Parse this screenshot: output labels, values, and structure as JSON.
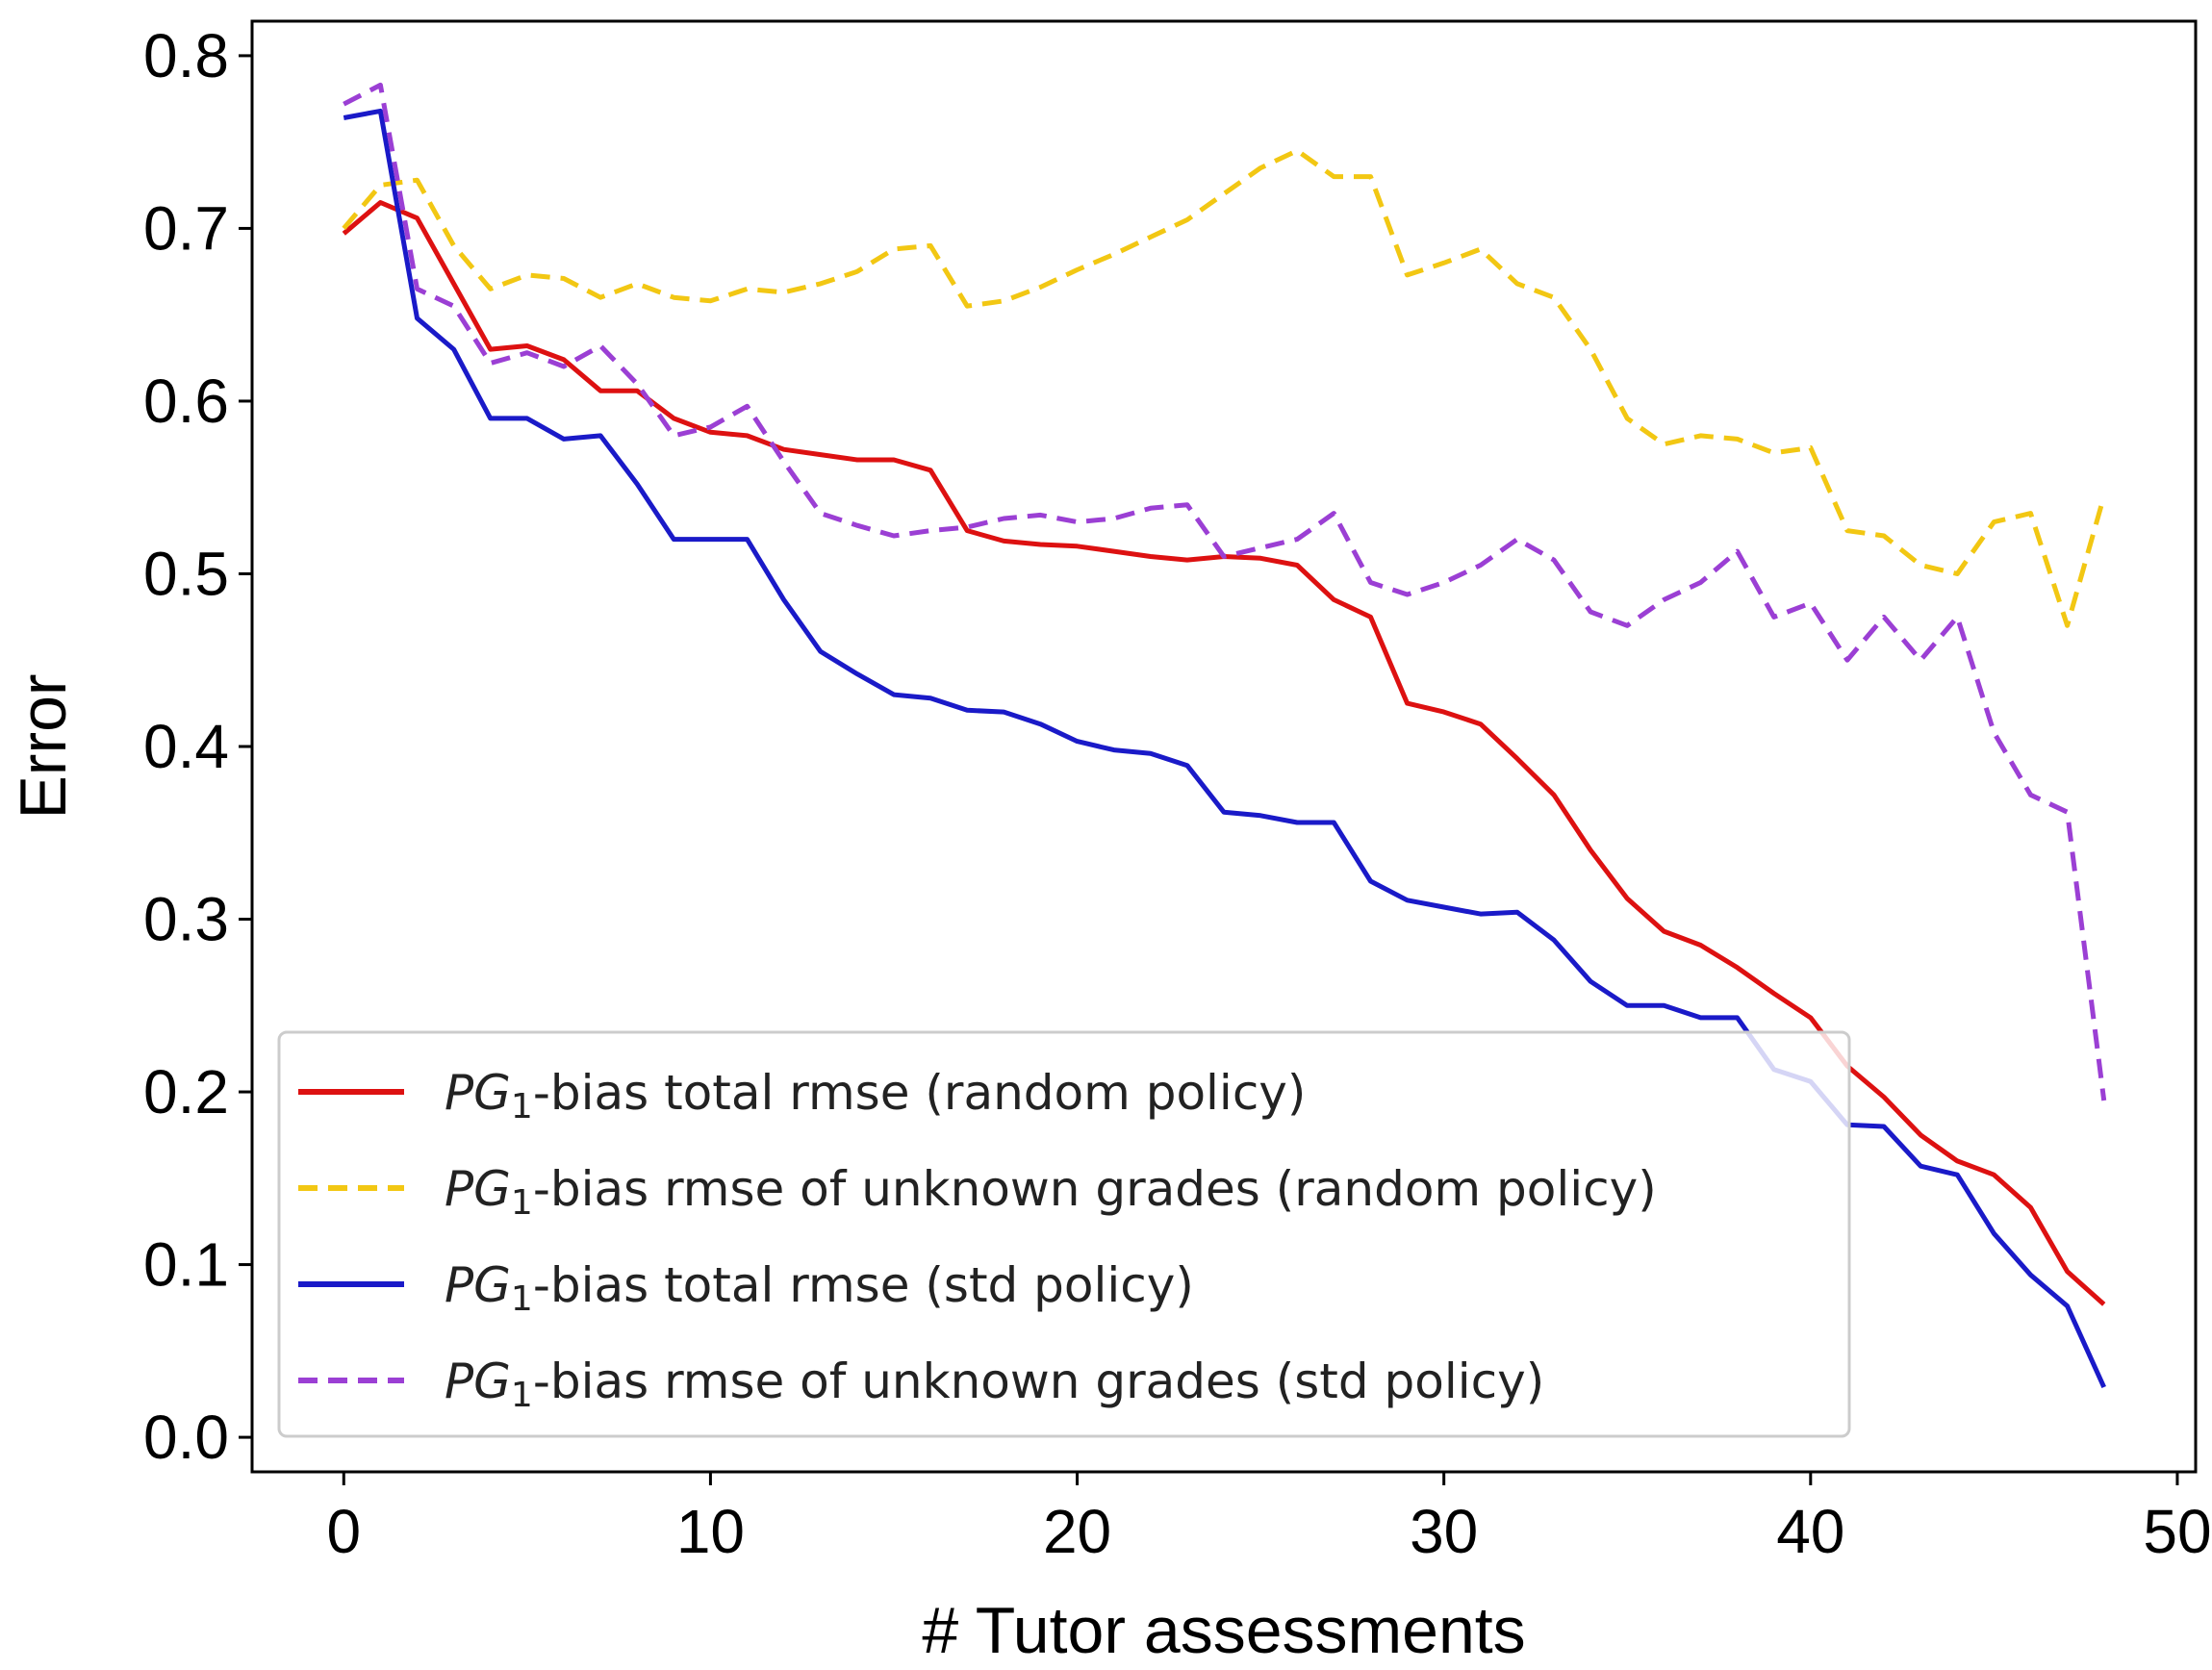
{
  "chart_data": {
    "type": "line",
    "title": "",
    "xlabel": "# Tutor assessments",
    "ylabel": "Error",
    "xlim": [
      -2.5,
      50.5
    ],
    "ylim": [
      -0.02,
      0.82
    ],
    "xticks": [
      0,
      10,
      20,
      30,
      40,
      50
    ],
    "xtick_labels": [
      "0",
      "10",
      "20",
      "30",
      "40",
      "50"
    ],
    "yticks": [
      0.0,
      0.1,
      0.2,
      0.3,
      0.4,
      0.5,
      0.6,
      0.7,
      0.8
    ],
    "ytick_labels": [
      "0.0",
      "0.1",
      "0.2",
      "0.3",
      "0.4",
      "0.5",
      "0.6",
      "0.7",
      "0.8"
    ],
    "legend_position": "lower-left",
    "x": [
      0,
      1,
      2,
      3,
      4,
      5,
      6,
      7,
      8,
      9,
      10,
      11,
      12,
      13,
      14,
      15,
      16,
      17,
      18,
      19,
      20,
      21,
      22,
      23,
      24,
      25,
      26,
      27,
      28,
      29,
      30,
      31,
      32,
      33,
      34,
      35,
      36,
      37,
      38,
      39,
      40,
      41,
      42,
      43,
      44,
      45,
      46,
      47,
      48
    ],
    "series": [
      {
        "name": "PG1-bias total rmse (random policy)",
        "legend_main": "PG",
        "legend_sub": "1",
        "legend_rest": "-bias total rmse (random policy)",
        "color": "#dd1111",
        "style": "solid",
        "values": [
          0.697,
          0.715,
          0.706,
          0.668,
          0.63,
          0.632,
          0.624,
          0.606,
          0.606,
          0.59,
          0.582,
          0.58,
          0.572,
          0.569,
          0.566,
          0.566,
          0.56,
          0.525,
          0.519,
          0.517,
          0.516,
          0.513,
          0.51,
          0.508,
          0.51,
          0.509,
          0.505,
          0.485,
          0.475,
          0.425,
          0.42,
          0.413,
          0.393,
          0.372,
          0.34,
          0.312,
          0.293,
          0.285,
          0.272,
          0.257,
          0.243,
          0.215,
          0.197,
          0.175,
          0.16,
          0.152,
          0.133,
          0.096,
          0.077
        ]
      },
      {
        "name": "PG1-bias rmse of unknown grades (random policy)",
        "legend_main": "PG",
        "legend_sub": "1",
        "legend_rest": "-bias rmse of unknown grades (random policy)",
        "color": "#f2c713",
        "style": "dashed",
        "values": [
          0.7,
          0.725,
          0.728,
          0.69,
          0.665,
          0.673,
          0.671,
          0.66,
          0.668,
          0.66,
          0.658,
          0.665,
          0.663,
          0.668,
          0.675,
          0.688,
          0.69,
          0.655,
          0.658,
          0.666,
          0.676,
          0.685,
          0.695,
          0.705,
          0.72,
          0.735,
          0.745,
          0.73,
          0.73,
          0.673,
          0.68,
          0.688,
          0.668,
          0.66,
          0.63,
          0.59,
          0.575,
          0.58,
          0.578,
          0.57,
          0.573,
          0.525,
          0.522,
          0.505,
          0.5,
          0.53,
          0.535,
          0.47,
          0.545
        ]
      },
      {
        "name": "PG1-bias total rmse (std policy)",
        "legend_main": "PG",
        "legend_sub": "1",
        "legend_rest": "-bias total rmse (std policy)",
        "color": "#1a1ac8",
        "style": "solid",
        "values": [
          0.764,
          0.768,
          0.648,
          0.63,
          0.59,
          0.59,
          0.578,
          0.58,
          0.552,
          0.52,
          0.52,
          0.52,
          0.485,
          0.455,
          0.442,
          0.43,
          0.428,
          0.421,
          0.42,
          0.413,
          0.403,
          0.398,
          0.396,
          0.389,
          0.362,
          0.36,
          0.356,
          0.356,
          0.322,
          0.311,
          0.307,
          0.303,
          0.304,
          0.288,
          0.264,
          0.25,
          0.25,
          0.243,
          0.243,
          0.213,
          0.206,
          0.181,
          0.18,
          0.157,
          0.152,
          0.118,
          0.094,
          0.076,
          0.029
        ]
      },
      {
        "name": "PG1-bias rmse of unknown grades (std policy)",
        "legend_main": "PG",
        "legend_sub": "1",
        "legend_rest": "-bias rmse of unknown grades (std policy)",
        "color": "#9b3fd4",
        "style": "dashed",
        "values": [
          0.772,
          0.783,
          0.665,
          0.655,
          0.622,
          0.628,
          0.62,
          0.632,
          0.61,
          0.58,
          0.585,
          0.597,
          0.565,
          0.535,
          0.528,
          0.522,
          0.525,
          0.527,
          0.532,
          0.534,
          0.53,
          0.532,
          0.538,
          0.54,
          0.51,
          0.515,
          0.52,
          0.535,
          0.495,
          0.488,
          0.495,
          0.505,
          0.52,
          0.508,
          0.478,
          0.47,
          0.485,
          0.495,
          0.513,
          0.475,
          0.483,
          0.45,
          0.475,
          0.45,
          0.475,
          0.408,
          0.372,
          0.362,
          0.195
        ]
      }
    ]
  }
}
